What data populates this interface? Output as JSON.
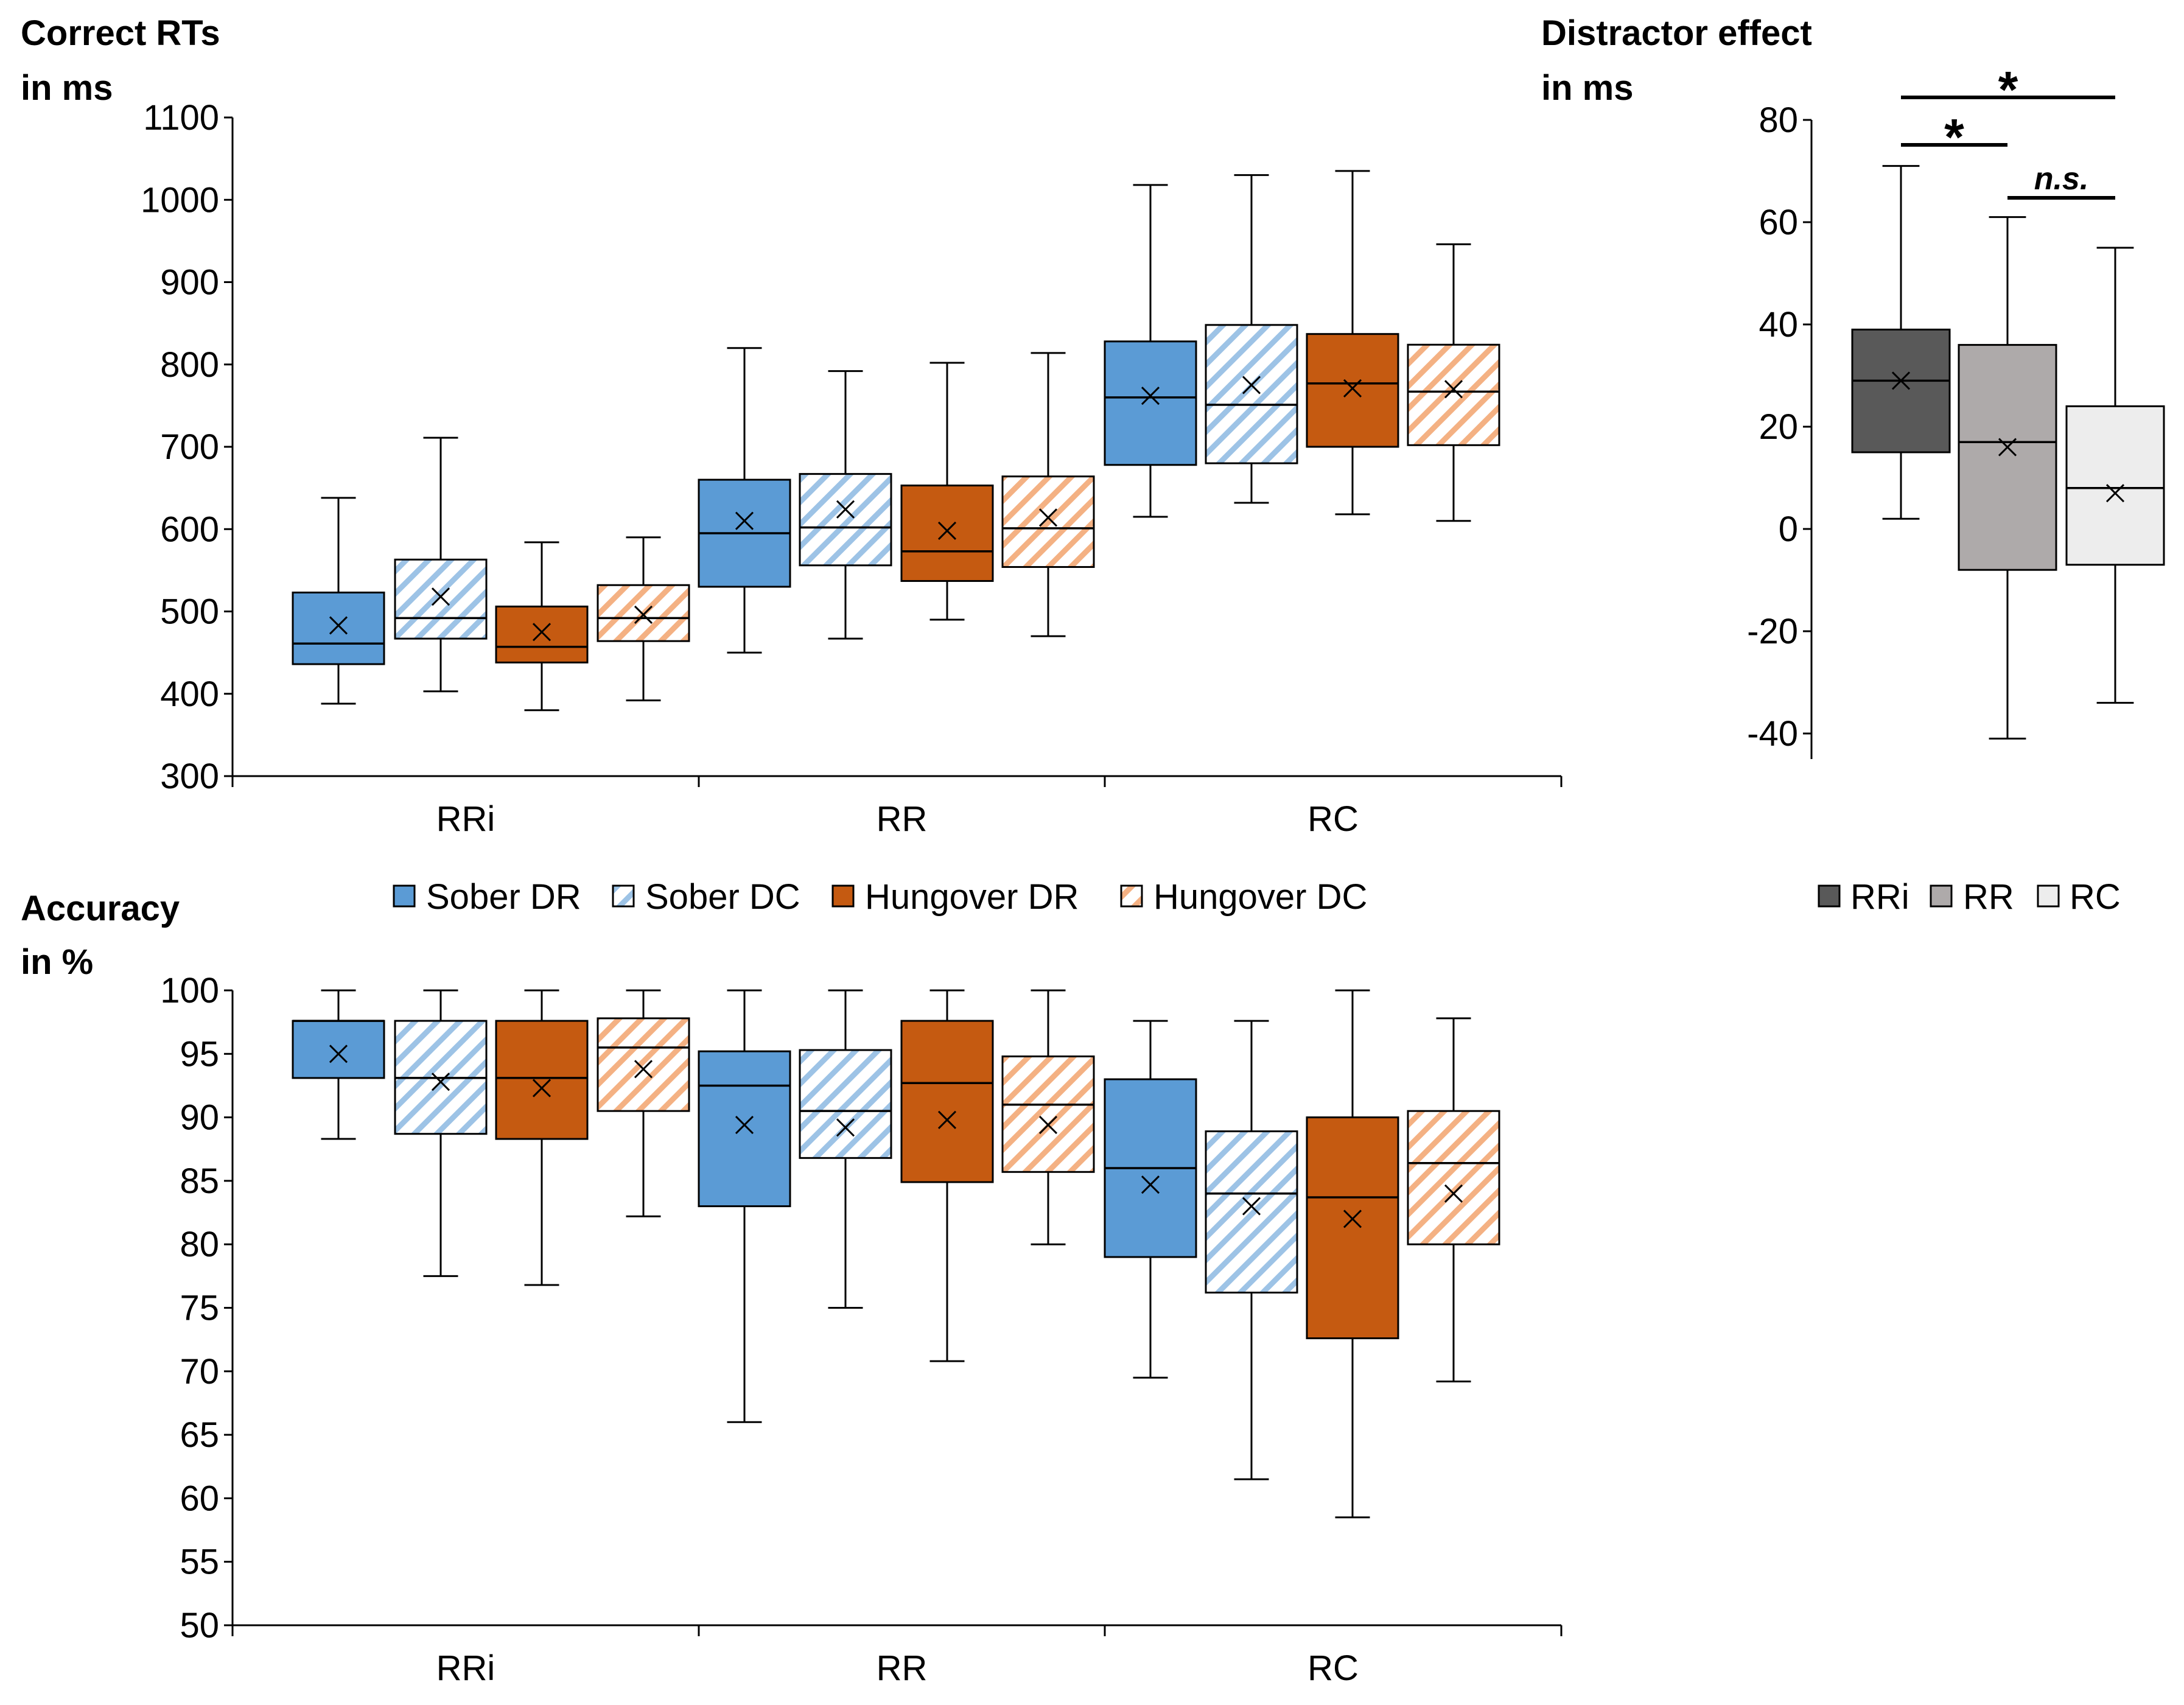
{
  "chart_data": [
    {
      "id": "rt",
      "type": "boxplot",
      "ylabel_line1": "Correct RTs",
      "ylabel_line2": "in ms",
      "ylim": [
        300,
        1100
      ],
      "yticks": [
        300,
        400,
        500,
        600,
        700,
        800,
        900,
        1000,
        1100
      ],
      "categories": [
        "RRi",
        "RR",
        "RC"
      ],
      "series": [
        {
          "name": "Sober DR",
          "color": "#5b9bd5",
          "pattern": "solid",
          "boxes": [
            {
              "min": 388,
              "q1": 436,
              "median": 461,
              "q3": 523,
              "max": 638,
              "mean": 483
            },
            {
              "min": 450,
              "q1": 530,
              "median": 595,
              "q3": 660,
              "max": 820,
              "mean": 610
            },
            {
              "min": 615,
              "q1": 678,
              "median": 760,
              "q3": 828,
              "max": 1018,
              "mean": 762
            }
          ]
        },
        {
          "name": "Sober DC",
          "color": "#9dc3e6",
          "pattern": "hatch",
          "boxes": [
            {
              "min": 403,
              "q1": 467,
              "median": 492,
              "q3": 563,
              "max": 711,
              "mean": 518
            },
            {
              "min": 467,
              "q1": 556,
              "median": 602,
              "q3": 667,
              "max": 792,
              "mean": 624
            },
            {
              "min": 632,
              "q1": 680,
              "median": 751,
              "q3": 848,
              "max": 1030,
              "mean": 775
            }
          ]
        },
        {
          "name": "Hungover DR",
          "color": "#c55a11",
          "pattern": "solid",
          "boxes": [
            {
              "min": 380,
              "q1": 438,
              "median": 457,
              "q3": 506,
              "max": 584,
              "mean": 475
            },
            {
              "min": 490,
              "q1": 537,
              "median": 573,
              "q3": 653,
              "max": 802,
              "mean": 598
            },
            {
              "min": 618,
              "q1": 700,
              "median": 777,
              "q3": 837,
              "max": 1035,
              "mean": 771
            }
          ]
        },
        {
          "name": "Hungover DC",
          "color": "#f4b183",
          "pattern": "hatch",
          "boxes": [
            {
              "min": 392,
              "q1": 464,
              "median": 492,
              "q3": 532,
              "max": 590,
              "mean": 496
            },
            {
              "min": 470,
              "q1": 554,
              "median": 601,
              "q3": 664,
              "max": 814,
              "mean": 614
            },
            {
              "min": 610,
              "q1": 702,
              "median": 767,
              "q3": 824,
              "max": 946,
              "mean": 770
            }
          ]
        }
      ]
    },
    {
      "id": "distractor",
      "type": "boxplot",
      "ylabel_line1": "Distractor effect",
      "ylabel_line2": "in ms",
      "ylim": [
        -45,
        80
      ],
      "yticks": [
        -40,
        -20,
        0,
        20,
        40,
        60,
        80
      ],
      "categories": [
        "RRi",
        "RR",
        "RC"
      ],
      "colors": [
        "#595959",
        "#aeaaaa",
        "#ededed"
      ],
      "boxes": [
        {
          "min": 2,
          "q1": 15,
          "median": 29,
          "q3": 39,
          "max": 71,
          "mean": 29
        },
        {
          "min": -41,
          "q1": -8,
          "median": 17,
          "q3": 36,
          "max": 61,
          "mean": 16
        },
        {
          "min": -34,
          "q1": -7,
          "median": 8,
          "q3": 24,
          "max": 55,
          "mean": 7
        }
      ],
      "annotations": [
        {
          "label": "*",
          "from": 0,
          "to": 2
        },
        {
          "label": "*",
          "from": 0,
          "to": 1
        },
        {
          "label": "n.s.",
          "from": 1,
          "to": 2
        }
      ]
    },
    {
      "id": "acc",
      "type": "boxplot",
      "ylabel_line1": "Accuracy",
      "ylabel_line2": "in %",
      "ylim": [
        50,
        100
      ],
      "yticks": [
        50,
        55,
        60,
        65,
        70,
        75,
        80,
        85,
        90,
        95,
        100
      ],
      "categories": [
        "RRi",
        "RR",
        "RC"
      ],
      "series": [
        {
          "name": "Sober DR",
          "color": "#5b9bd5",
          "pattern": "solid",
          "boxes": [
            {
              "min": 88.3,
              "q1": 93.1,
              "median": 97.6,
              "q3": 97.6,
              "max": 100,
              "mean": 95.0
            },
            {
              "min": 66.0,
              "q1": 83.0,
              "median": 92.5,
              "q3": 95.2,
              "max": 100,
              "mean": 89.4
            },
            {
              "min": 69.5,
              "q1": 79.0,
              "median": 86.0,
              "q3": 93.0,
              "max": 97.6,
              "mean": 84.7
            }
          ]
        },
        {
          "name": "Sober DC",
          "color": "#9dc3e6",
          "pattern": "hatch",
          "boxes": [
            {
              "min": 77.5,
              "q1": 88.7,
              "median": 93.1,
              "q3": 97.6,
              "max": 100,
              "mean": 92.8
            },
            {
              "min": 75.0,
              "q1": 86.8,
              "median": 90.5,
              "q3": 95.3,
              "max": 100,
              "mean": 89.2
            },
            {
              "min": 61.5,
              "q1": 76.2,
              "median": 84.0,
              "q3": 88.9,
              "max": 97.6,
              "mean": 83.0
            }
          ]
        },
        {
          "name": "Hungover DR",
          "color": "#c55a11",
          "pattern": "solid",
          "boxes": [
            {
              "min": 76.8,
              "q1": 88.3,
              "median": 93.1,
              "q3": 97.6,
              "max": 100,
              "mean": 92.3
            },
            {
              "min": 70.8,
              "q1": 84.9,
              "median": 92.7,
              "q3": 97.6,
              "max": 100,
              "mean": 89.8
            },
            {
              "min": 58.5,
              "q1": 72.6,
              "median": 83.7,
              "q3": 90.0,
              "max": 100,
              "mean": 82.0
            }
          ]
        },
        {
          "name": "Hungover DC",
          "color": "#f4b183",
          "pattern": "hatch",
          "boxes": [
            {
              "min": 82.2,
              "q1": 90.5,
              "median": 95.5,
              "q3": 97.8,
              "max": 100,
              "mean": 93.8
            },
            {
              "min": 80.0,
              "q1": 85.7,
              "median": 91.0,
              "q3": 94.8,
              "max": 100,
              "mean": 89.4
            },
            {
              "min": 69.2,
              "q1": 80.0,
              "median": 86.4,
              "q3": 90.5,
              "max": 97.8,
              "mean": 84.0
            }
          ]
        }
      ]
    }
  ],
  "legend_main": [
    "Sober DR",
    "Sober DC",
    "Hungover DR",
    "Hungover DC"
  ],
  "legend_effect": [
    "RRi",
    "RR",
    "RC"
  ]
}
